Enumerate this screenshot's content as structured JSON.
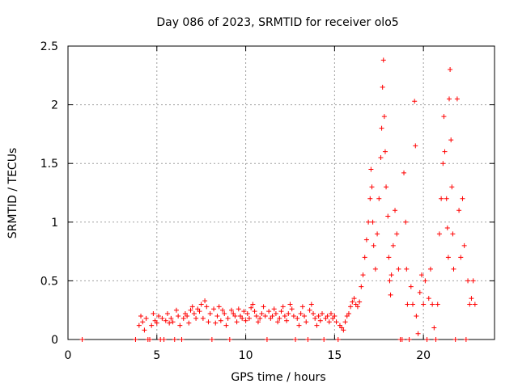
{
  "chart_data": {
    "type": "scatter",
    "title": "Day 086 of 2023, SRMTID for receiver olo5",
    "xlabel": "GPS time / hours",
    "ylabel": "SRMTID / TECUs",
    "xlim": [
      0,
      24
    ],
    "ylim": [
      0,
      2.5
    ],
    "xticks": [
      0,
      5,
      10,
      15,
      20
    ],
    "yticks": [
      0,
      0.5,
      1,
      1.5,
      2,
      2.5
    ],
    "xtick_labels": [
      "0",
      "5",
      "10",
      "15",
      "20"
    ],
    "ytick_labels": [
      "0",
      "0.5",
      "1",
      "1.5",
      "2",
      "2.5"
    ],
    "grid": true,
    "marker": "+",
    "series": [
      {
        "name": "SRMTID",
        "color": "#ff0000",
        "points": [
          [
            0.8,
            0.0
          ],
          [
            3.8,
            0.0
          ],
          [
            4.0,
            0.12
          ],
          [
            4.1,
            0.2
          ],
          [
            4.2,
            0.15
          ],
          [
            4.3,
            0.08
          ],
          [
            4.4,
            0.18
          ],
          [
            4.5,
            0.0
          ],
          [
            4.6,
            0.0
          ],
          [
            4.7,
            0.12
          ],
          [
            4.8,
            0.22
          ],
          [
            4.9,
            0.16
          ],
          [
            5.0,
            0.14
          ],
          [
            5.1,
            0.2
          ],
          [
            5.2,
            0.0
          ],
          [
            5.3,
            0.18
          ],
          [
            5.4,
            0.0
          ],
          [
            5.5,
            0.16
          ],
          [
            5.6,
            0.22
          ],
          [
            5.7,
            0.14
          ],
          [
            5.8,
            0.18
          ],
          [
            5.9,
            0.15
          ],
          [
            6.0,
            0.0
          ],
          [
            6.1,
            0.25
          ],
          [
            6.2,
            0.2
          ],
          [
            6.3,
            0.12
          ],
          [
            6.4,
            0.0
          ],
          [
            6.5,
            0.18
          ],
          [
            6.6,
            0.22
          ],
          [
            6.7,
            0.2
          ],
          [
            6.8,
            0.14
          ],
          [
            6.9,
            0.25
          ],
          [
            7.0,
            0.28
          ],
          [
            7.1,
            0.22
          ],
          [
            7.2,
            0.18
          ],
          [
            7.3,
            0.26
          ],
          [
            7.4,
            0.24
          ],
          [
            7.5,
            0.3
          ],
          [
            7.6,
            0.18
          ],
          [
            7.7,
            0.33
          ],
          [
            7.8,
            0.28
          ],
          [
            7.9,
            0.15
          ],
          [
            8.0,
            0.22
          ],
          [
            8.1,
            0.0
          ],
          [
            8.2,
            0.26
          ],
          [
            8.3,
            0.14
          ],
          [
            8.4,
            0.2
          ],
          [
            8.5,
            0.28
          ],
          [
            8.6,
            0.16
          ],
          [
            8.7,
            0.25
          ],
          [
            8.8,
            0.22
          ],
          [
            8.9,
            0.12
          ],
          [
            9.0,
            0.18
          ],
          [
            9.1,
            0.0
          ],
          [
            9.2,
            0.25
          ],
          [
            9.3,
            0.22
          ],
          [
            9.4,
            0.2
          ],
          [
            9.5,
            0.15
          ],
          [
            9.6,
            0.26
          ],
          [
            9.7,
            0.2
          ],
          [
            9.8,
            0.18
          ],
          [
            9.9,
            0.24
          ],
          [
            10.0,
            0.16
          ],
          [
            10.1,
            0.22
          ],
          [
            10.2,
            0.18
          ],
          [
            10.3,
            0.27
          ],
          [
            10.4,
            0.3
          ],
          [
            10.5,
            0.24
          ],
          [
            10.6,
            0.2
          ],
          [
            10.7,
            0.15
          ],
          [
            10.8,
            0.18
          ],
          [
            10.9,
            0.22
          ],
          [
            11.0,
            0.28
          ],
          [
            11.1,
            0.2
          ],
          [
            11.2,
            0.0
          ],
          [
            11.3,
            0.24
          ],
          [
            11.4,
            0.18
          ],
          [
            11.5,
            0.2
          ],
          [
            11.6,
            0.26
          ],
          [
            11.7,
            0.22
          ],
          [
            11.8,
            0.15
          ],
          [
            11.9,
            0.18
          ],
          [
            12.0,
            0.24
          ],
          [
            12.1,
            0.28
          ],
          [
            12.2,
            0.2
          ],
          [
            12.3,
            0.16
          ],
          [
            12.4,
            0.22
          ],
          [
            12.5,
            0.3
          ],
          [
            12.6,
            0.26
          ],
          [
            12.7,
            0.2
          ],
          [
            12.8,
            0.0
          ],
          [
            12.9,
            0.18
          ],
          [
            13.0,
            0.12
          ],
          [
            13.1,
            0.22
          ],
          [
            13.2,
            0.28
          ],
          [
            13.3,
            0.2
          ],
          [
            13.4,
            0.15
          ],
          [
            13.5,
            0.0
          ],
          [
            13.6,
            0.25
          ],
          [
            13.7,
            0.3
          ],
          [
            13.8,
            0.22
          ],
          [
            13.9,
            0.18
          ],
          [
            14.0,
            0.12
          ],
          [
            14.1,
            0.2
          ],
          [
            14.2,
            0.16
          ],
          [
            14.3,
            0.22
          ],
          [
            14.4,
            0.0
          ],
          [
            14.5,
            0.18
          ],
          [
            14.6,
            0.2
          ],
          [
            14.7,
            0.15
          ],
          [
            14.8,
            0.22
          ],
          [
            14.9,
            0.18
          ],
          [
            15.0,
            0.2
          ],
          [
            15.1,
            0.15
          ],
          [
            15.2,
            0.0
          ],
          [
            15.3,
            0.12
          ],
          [
            15.4,
            0.1
          ],
          [
            15.5,
            0.08
          ],
          [
            15.6,
            0.15
          ],
          [
            15.7,
            0.2
          ],
          [
            15.8,
            0.22
          ],
          [
            15.9,
            0.28
          ],
          [
            16.0,
            0.32
          ],
          [
            16.1,
            0.35
          ],
          [
            16.2,
            0.3
          ],
          [
            16.3,
            0.28
          ],
          [
            16.4,
            0.32
          ],
          [
            16.5,
            0.45
          ],
          [
            16.6,
            0.55
          ],
          [
            16.7,
            0.7
          ],
          [
            16.8,
            0.85
          ],
          [
            16.9,
            1.0
          ],
          [
            17.0,
            1.2
          ],
          [
            17.05,
            1.45
          ],
          [
            17.1,
            1.3
          ],
          [
            17.15,
            1.0
          ],
          [
            17.2,
            0.8
          ],
          [
            17.3,
            0.6
          ],
          [
            17.4,
            0.9
          ],
          [
            17.5,
            1.2
          ],
          [
            17.6,
            1.55
          ],
          [
            17.65,
            1.8
          ],
          [
            17.7,
            2.15
          ],
          [
            17.75,
            2.38
          ],
          [
            17.8,
            1.9
          ],
          [
            17.85,
            1.6
          ],
          [
            17.9,
            1.3
          ],
          [
            18.0,
            1.05
          ],
          [
            18.05,
            0.7
          ],
          [
            18.1,
            0.5
          ],
          [
            18.15,
            0.38
          ],
          [
            18.2,
            0.55
          ],
          [
            18.3,
            0.8
          ],
          [
            18.4,
            1.1
          ],
          [
            18.5,
            0.9
          ],
          [
            18.6,
            0.6
          ],
          [
            18.7,
            0.0
          ],
          [
            18.8,
            0.0
          ],
          [
            18.9,
            1.42
          ],
          [
            19.0,
            1.0
          ],
          [
            19.05,
            0.6
          ],
          [
            19.1,
            0.3
          ],
          [
            19.2,
            0.0
          ],
          [
            19.3,
            0.45
          ],
          [
            19.4,
            0.3
          ],
          [
            19.5,
            2.03
          ],
          [
            19.55,
            1.65
          ],
          [
            19.6,
            0.2
          ],
          [
            19.7,
            0.05
          ],
          [
            19.8,
            0.4
          ],
          [
            19.9,
            0.55
          ],
          [
            20.0,
            0.3
          ],
          [
            20.1,
            0.5
          ],
          [
            20.2,
            0.0
          ],
          [
            20.3,
            0.35
          ],
          [
            20.4,
            0.6
          ],
          [
            20.5,
            0.3
          ],
          [
            20.6,
            0.1
          ],
          [
            20.7,
            0.0
          ],
          [
            20.8,
            0.3
          ],
          [
            20.9,
            0.9
          ],
          [
            21.0,
            1.2
          ],
          [
            21.1,
            1.5
          ],
          [
            21.15,
            1.9
          ],
          [
            21.2,
            1.6
          ],
          [
            21.3,
            1.2
          ],
          [
            21.35,
            0.95
          ],
          [
            21.4,
            0.7
          ],
          [
            21.45,
            2.05
          ],
          [
            21.5,
            2.3
          ],
          [
            21.55,
            1.7
          ],
          [
            21.6,
            1.3
          ],
          [
            21.65,
            0.9
          ],
          [
            21.7,
            0.6
          ],
          [
            21.8,
            0.0
          ],
          [
            21.9,
            2.05
          ],
          [
            22.0,
            1.1
          ],
          [
            22.1,
            0.7
          ],
          [
            22.2,
            1.2
          ],
          [
            22.3,
            0.8
          ],
          [
            22.4,
            0.0
          ],
          [
            22.5,
            0.5
          ],
          [
            22.6,
            0.3
          ],
          [
            22.7,
            0.35
          ],
          [
            22.8,
            0.5
          ],
          [
            22.9,
            0.3
          ]
        ]
      }
    ]
  }
}
